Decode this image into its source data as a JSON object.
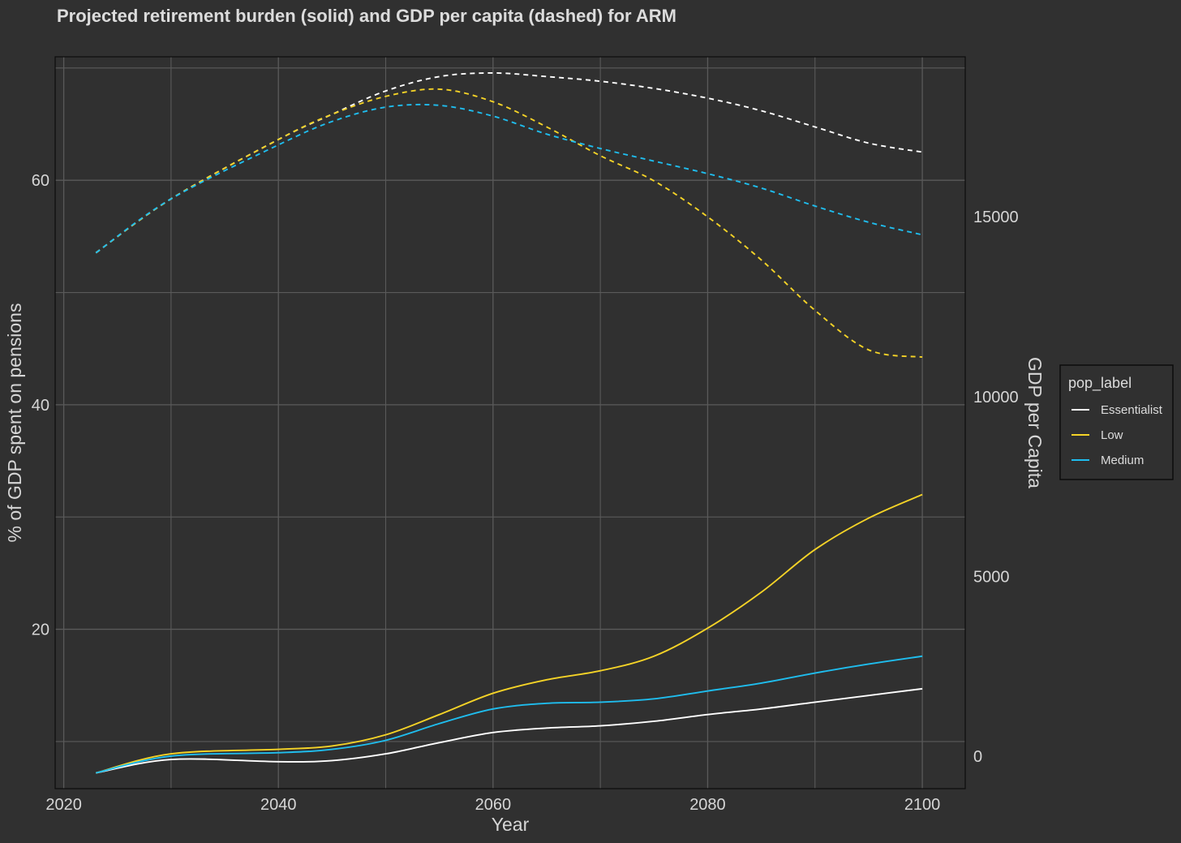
{
  "chart_data": {
    "type": "line",
    "title": "Projected retirement burden (solid) and GDP per capita (dashed) for ARM",
    "xlabel": "Year",
    "ylabel": "% of GDP spent on pensions",
    "y2label": "GDP per Capita",
    "xlim": [
      2019.2,
      2104
    ],
    "ylim": [
      5.8,
      71.0
    ],
    "y2lim": [
      -900,
      19450
    ],
    "x_ticks": [
      "2020",
      "2040",
      "2060",
      "2080",
      "2100"
    ],
    "y_ticks": [
      "20",
      "40",
      "60"
    ],
    "y2_ticks": [
      "0",
      "5000",
      "10000",
      "15000"
    ],
    "grid": true,
    "legend": {
      "title": "pop_label",
      "placement": "right",
      "entries": [
        "Essentialist",
        "Low",
        "Medium"
      ]
    },
    "colors": {
      "background": "#303030",
      "grid": "#5a5a5a",
      "Essentialist": "#ffffff",
      "Low": "#f5d327",
      "Medium": "#1fbdee"
    },
    "x": [
      2023,
      2030,
      2040,
      2045,
      2050,
      2055,
      2060,
      2065,
      2070,
      2075,
      2080,
      2085,
      2090,
      2095,
      2100
    ],
    "series": [
      {
        "name": "Essentialist",
        "axis": "left",
        "style": "solid",
        "values": [
          7.2,
          8.4,
          8.2,
          8.3,
          8.9,
          9.9,
          10.8,
          11.2,
          11.4,
          11.8,
          12.4,
          12.9,
          13.5,
          14.1,
          14.7
        ]
      },
      {
        "name": "Low",
        "axis": "left",
        "style": "solid",
        "values": [
          7.2,
          8.9,
          9.3,
          9.6,
          10.6,
          12.4,
          14.3,
          15.5,
          16.3,
          17.6,
          20.1,
          23.3,
          27.1,
          29.9,
          32.0
        ]
      },
      {
        "name": "Medium",
        "axis": "left",
        "style": "solid",
        "values": [
          7.2,
          8.7,
          9.0,
          9.3,
          10.1,
          11.6,
          12.9,
          13.4,
          13.5,
          13.8,
          14.5,
          15.2,
          16.1,
          16.9,
          17.6
        ]
      },
      {
        "name": "Essentialist",
        "axis": "right",
        "style": "dashed",
        "values": [
          14000,
          15500,
          17150,
          17850,
          18500,
          18900,
          19000,
          18900,
          18770,
          18570,
          18300,
          17950,
          17500,
          17050,
          16800
        ]
      },
      {
        "name": "Low",
        "axis": "right",
        "style": "dashed",
        "values": [
          14000,
          15500,
          17150,
          17850,
          18350,
          18550,
          18200,
          17500,
          16700,
          16000,
          15000,
          13800,
          12400,
          11300,
          11100
        ]
      },
      {
        "name": "Medium",
        "axis": "right",
        "style": "dashed",
        "values": [
          14000,
          15500,
          17000,
          17650,
          18050,
          18100,
          17800,
          17300,
          16900,
          16550,
          16200,
          15800,
          15300,
          14850,
          14500
        ]
      }
    ]
  }
}
